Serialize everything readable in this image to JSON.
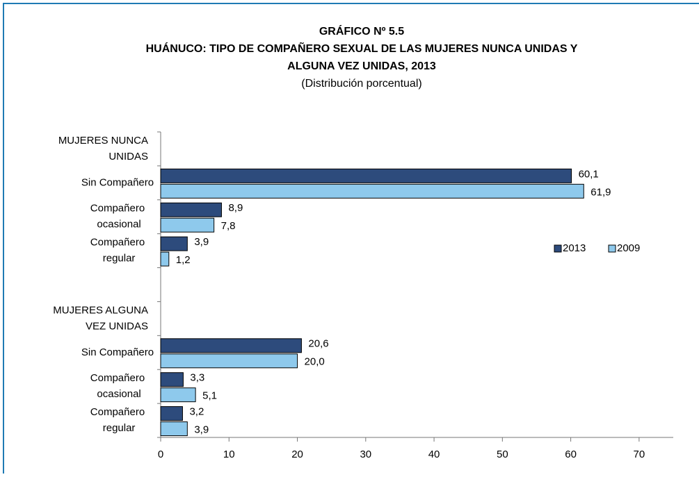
{
  "chart_data": {
    "type": "hbar",
    "title": [
      "GRÁFICO Nº 5.5",
      "HUÁNUCO: TIPO DE COMPAÑERO SEXUAL DE LAS MUJERES NUNCA UNIDAS Y",
      "ALGUNA VEZ UNIDAS, 2013"
    ],
    "subtitle": "(Distribución porcentual)",
    "categories": [
      "MUJERES NUNCA UNIDAS",
      "Sin Compañero",
      "Compañero ocasional",
      "Compañero regular",
      null,
      "MUJERES ALGUNA VEZ UNIDAS",
      "Sin Compañero",
      "Compañero ocasional",
      "Compañero regular"
    ],
    "series": [
      {
        "name": "2013",
        "color": "#2d4b7c",
        "values": [
          null,
          60.1,
          8.9,
          3.9,
          null,
          null,
          20.6,
          3.3,
          3.2
        ],
        "value_labels": [
          null,
          "60,1",
          "8,9",
          "3,9",
          null,
          null,
          "20,6",
          "3,3",
          "3,2"
        ]
      },
      {
        "name": "2009",
        "color": "#8ec9ec",
        "values": [
          null,
          61.9,
          7.8,
          1.2,
          null,
          null,
          20.0,
          5.1,
          3.9
        ],
        "value_labels": [
          null,
          "61,9",
          "7,8",
          "1,2",
          null,
          null,
          "20,0",
          "5,1",
          "3,9"
        ]
      }
    ],
    "xlim": [
      0,
      75
    ],
    "xticks": [
      0,
      10,
      20,
      30,
      40,
      50,
      60,
      70
    ],
    "grid": false,
    "legend": "right"
  }
}
